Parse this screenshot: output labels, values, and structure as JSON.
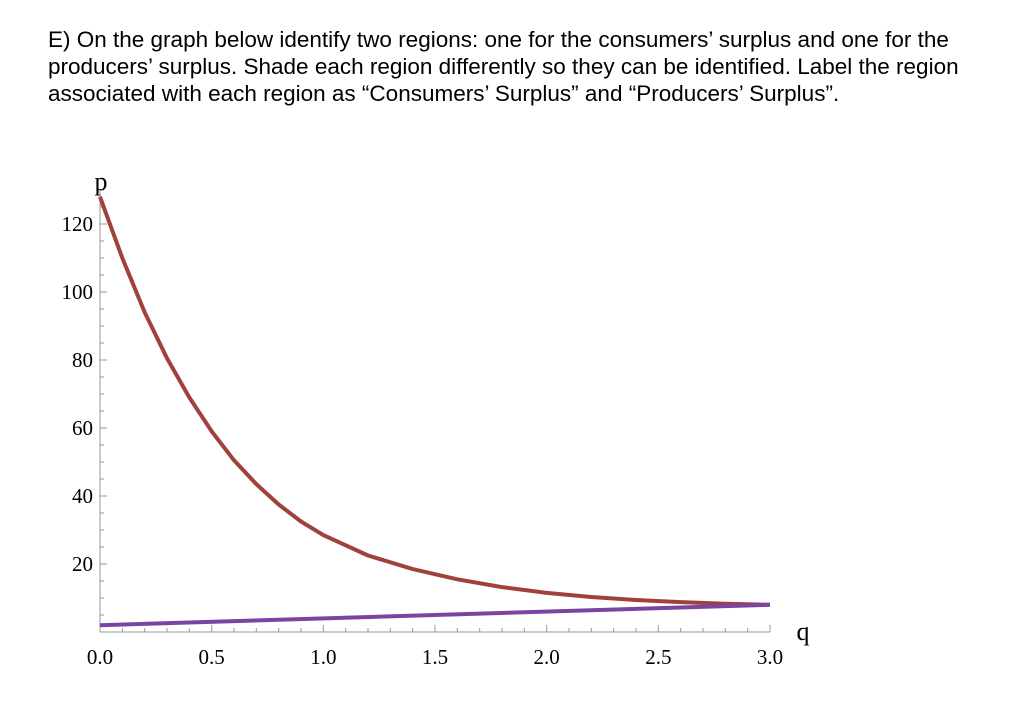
{
  "question": {
    "text": "E) On the graph below identify two regions: one for the consumers’ surplus and one for the producers’ surplus. Shade each region differently so they can be identified. Label the region associated with each region as “Consumers’ Surplus” and “Producers’ Surplus”."
  },
  "chart_data": {
    "type": "line",
    "title": "",
    "xlabel": "q",
    "ylabel": "p",
    "xlim": [
      0,
      3.0
    ],
    "ylim": [
      0,
      130
    ],
    "x_ticks": [
      "0.0",
      "0.5",
      "1.0",
      "1.5",
      "2.0",
      "2.5",
      "3.0"
    ],
    "y_ticks": [
      "20",
      "40",
      "60",
      "80",
      "100",
      "120"
    ],
    "grid": false,
    "legend": "none",
    "series": [
      {
        "color": "#a0413c",
        "x": [
          0,
          0.1,
          0.2,
          0.3,
          0.4,
          0.5,
          0.6,
          0.7,
          0.8,
          0.9,
          1.0,
          1.2,
          1.4,
          1.6,
          1.8,
          2.0,
          2.2,
          2.4,
          2.6,
          2.8,
          3.0
        ],
        "y": [
          128,
          110,
          94,
          80.5,
          69,
          59,
          50.5,
          43.5,
          37.5,
          32.5,
          28.5,
          22.5,
          18.5,
          15.5,
          13.2,
          11.5,
          10.3,
          9.4,
          8.8,
          8.3,
          8.0
        ]
      },
      {
        "color": "#7a44a0",
        "x": [
          0,
          3.0
        ],
        "y": [
          2,
          8
        ]
      }
    ]
  }
}
